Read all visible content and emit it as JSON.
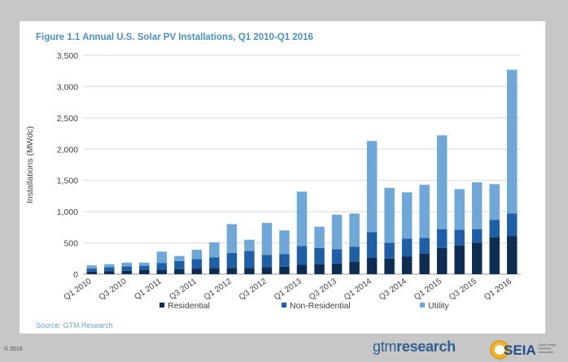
{
  "title": "Figure 1.1 Annual U.S. Solar PV Installations, Q1 2010-Q1 2016",
  "source": "Source: GTM Research",
  "copyright": "© 2016",
  "logos": {
    "gtm_light": "gtm",
    "gtm_bold": "research",
    "seia": "SEIA",
    "seia_tagline": "Solar Energy Industries Association"
  },
  "colors": {
    "residential": "#0d2d52",
    "non_residential": "#1f5fa8",
    "utility": "#6fa8d8",
    "title": "#4a90c4",
    "background": "#c7c7c7"
  },
  "chart_data": {
    "type": "bar",
    "stacked": true,
    "title": "Figure 1.1 Annual U.S. Solar PV Installations, Q1 2010-Q1 2016",
    "ylabel": "Installations (MWdc)",
    "xlabel": "",
    "ylim": [
      0,
      3500
    ],
    "yticks": [
      0,
      500,
      1000,
      1500,
      2000,
      2500,
      3000,
      3500
    ],
    "ytick_labels": [
      "0",
      "500",
      "1,000",
      "1,500",
      "2,000",
      "2,500",
      "3,000",
      "3,500"
    ],
    "grid": true,
    "legend": "bottom",
    "categories": [
      "Q1 2010",
      "Q2 2010",
      "Q3 2010",
      "Q4 2010",
      "Q1 2011",
      "Q2 2011",
      "Q3 2011",
      "Q4 2011",
      "Q1 2012",
      "Q2 2012",
      "Q3 2012",
      "Q4 2012",
      "Q1 2013",
      "Q2 2013",
      "Q3 2013",
      "Q4 2013",
      "Q1 2014",
      "Q2 2014",
      "Q3 2014",
      "Q4 2014",
      "Q1 2015",
      "Q2 2015",
      "Q3 2015",
      "Q4 2015",
      "Q1 2016"
    ],
    "xtick_labels": [
      "Q1 2010",
      "",
      "Q3 2010",
      "",
      "Q1 2011",
      "",
      "Q3 2011",
      "",
      "Q1 2012",
      "",
      "Q3 2012",
      "",
      "Q1 2013",
      "",
      "Q3 2013",
      "",
      "Q1 2014",
      "",
      "Q3 2014",
      "",
      "Q1 2015",
      "",
      "Q3 2015",
      "",
      "Q1 2016"
    ],
    "series": [
      {
        "name": "Residential",
        "values": [
          40,
          50,
          55,
          65,
          70,
          80,
          90,
          100,
          100,
          100,
          110,
          120,
          150,
          160,
          170,
          200,
          260,
          250,
          280,
          330,
          420,
          460,
          500,
          590,
          610
        ]
      },
      {
        "name": "Non-Residential",
        "values": [
          50,
          60,
          70,
          70,
          110,
          130,
          150,
          170,
          240,
          270,
          200,
          200,
          300,
          260,
          230,
          240,
          410,
          250,
          290,
          250,
          300,
          250,
          220,
          280,
          360
        ]
      },
      {
        "name": "Utility",
        "values": [
          50,
          50,
          60,
          50,
          180,
          80,
          150,
          240,
          460,
          180,
          510,
          380,
          870,
          340,
          550,
          530,
          1460,
          880,
          740,
          850,
          1500,
          650,
          750,
          570,
          2300
        ]
      }
    ]
  }
}
